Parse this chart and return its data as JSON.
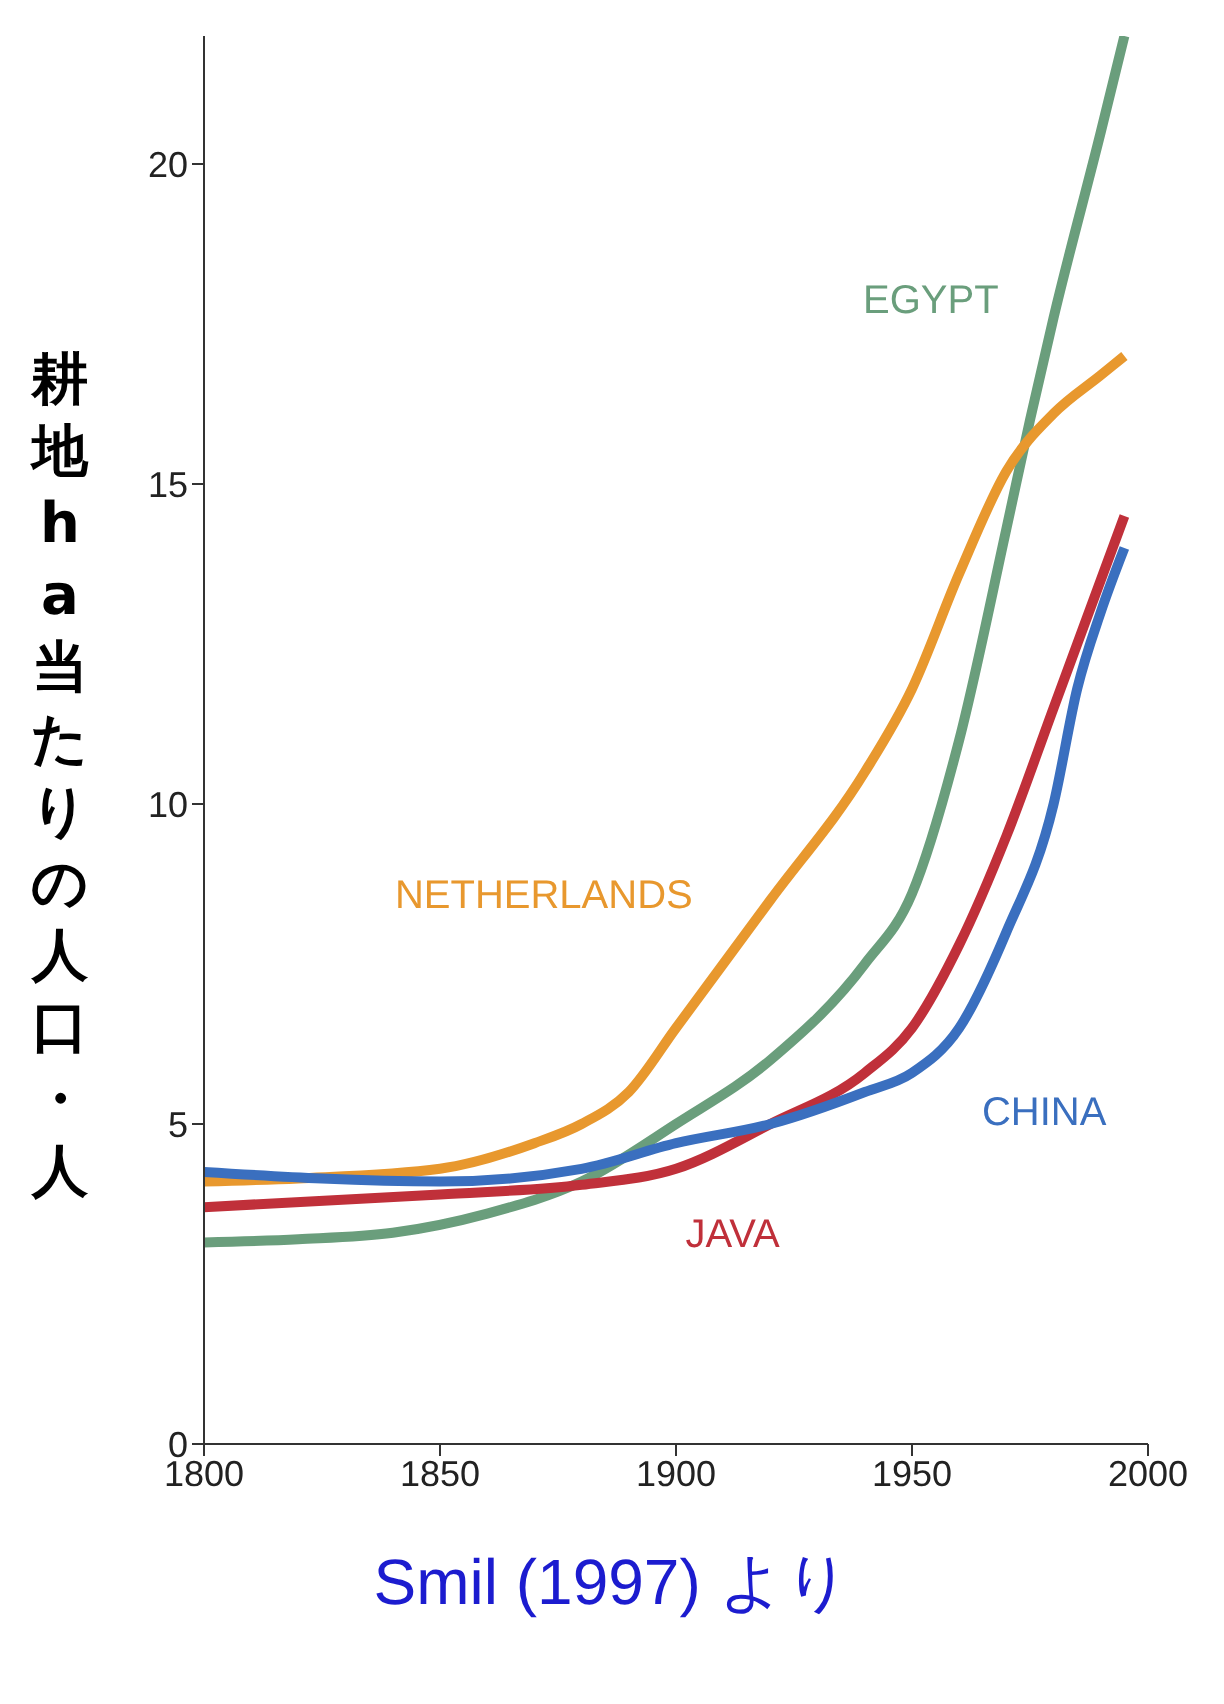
{
  "chart_data": {
    "type": "line",
    "ylabel": "耕地ha当たりの人口・人",
    "annotations": [
      "Smil (1997) より"
    ],
    "xlim": [
      1800,
      2000
    ],
    "xticks": [
      1800,
      1850,
      1900,
      1950,
      2000
    ],
    "ylim": [
      0,
      22
    ],
    "yticks": [
      0,
      5,
      10,
      15,
      20
    ],
    "marker": "none",
    "line_style": "solid",
    "series": [
      {
        "name": "EGYPT",
        "color": "#6a9e7c",
        "x": [
          1800,
          1820,
          1840,
          1860,
          1880,
          1900,
          1920,
          1940,
          1950,
          1960,
          1970,
          1975,
          1980,
          1990,
          1995
        ],
        "values": [
          3.15,
          3.2,
          3.3,
          3.6,
          4.1,
          5.0,
          6.0,
          7.5,
          8.6,
          11,
          14.3,
          16,
          17.6,
          20.5,
          22
        ]
      },
      {
        "name": "NETHERLANDS",
        "color": "#e8982e",
        "x": [
          1800,
          1820,
          1850,
          1870,
          1880,
          1890,
          1900,
          1920,
          1940,
          1950,
          1960,
          1970,
          1980,
          1990,
          1995
        ],
        "values": [
          4.1,
          4.15,
          4.3,
          4.7,
          5.0,
          5.5,
          6.5,
          8.5,
          10.5,
          11.8,
          13.6,
          15.2,
          16.1,
          16.7,
          17
        ]
      },
      {
        "name": "JAVA",
        "color": "#c0303a",
        "x": [
          1800,
          1850,
          1880,
          1900,
          1920,
          1940,
          1950,
          1960,
          1970,
          1980,
          1990,
          1995
        ],
        "values": [
          3.7,
          3.9,
          4.05,
          4.3,
          5.0,
          5.8,
          6.5,
          7.8,
          9.5,
          11.5,
          13.5,
          14.5
        ]
      },
      {
        "name": "CHINA",
        "color": "#3a6fbf",
        "x": [
          1800,
          1850,
          1880,
          1900,
          1920,
          1940,
          1950,
          1960,
          1970,
          1980,
          1985,
          1990,
          1995
        ],
        "values": [
          4.25,
          4.1,
          4.3,
          4.7,
          5.0,
          5.5,
          5.8,
          6.5,
          8.0,
          10,
          11.8,
          13,
          14
        ]
      }
    ]
  }
}
